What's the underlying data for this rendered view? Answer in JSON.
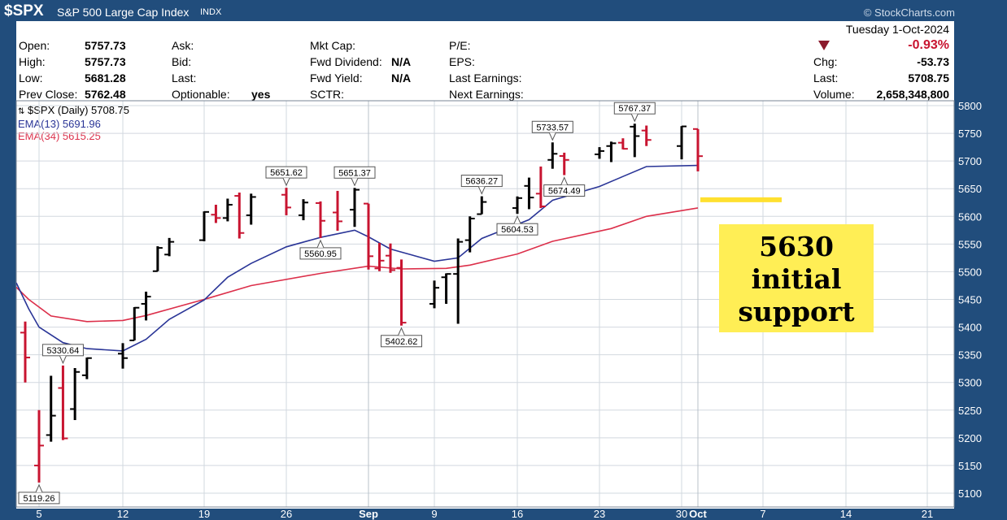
{
  "header": {
    "ticker": "$SPX",
    "name": "S&P 500 Large Cap Index",
    "exchange": "INDX",
    "brand": "© StockCharts.com"
  },
  "info": {
    "col1": [
      {
        "label": "Open:",
        "value": "5757.73"
      },
      {
        "label": "High:",
        "value": "5757.73"
      },
      {
        "label": "Low:",
        "value": "5681.28"
      },
      {
        "label": "Prev Close:",
        "value": "5762.48"
      }
    ],
    "col2": [
      {
        "label": "Ask:",
        "value": ""
      },
      {
        "label": "Bid:",
        "value": ""
      },
      {
        "label": "Last:",
        "value": ""
      },
      {
        "label": "Optionable:",
        "value": "yes"
      }
    ],
    "col3": [
      {
        "label": "Mkt Cap:",
        "value": ""
      },
      {
        "label": "Fwd Dividend:",
        "value": "N/A"
      },
      {
        "label": "Fwd Yield:",
        "value": "N/A"
      },
      {
        "label": "SCTR:",
        "value": ""
      }
    ],
    "col4": [
      {
        "label": "P/E:",
        "value": ""
      },
      {
        "label": "EPS:",
        "value": ""
      },
      {
        "label": "Last Earnings:",
        "value": ""
      },
      {
        "label": "Next Earnings:",
        "value": ""
      }
    ],
    "date": "Tuesday   1-Oct-2024",
    "change_pct": "-0.93%",
    "stats": [
      {
        "label": "Chg:",
        "value": "-53.73"
      },
      {
        "label": "Last:",
        "value": "5708.75"
      },
      {
        "label": "Volume:",
        "value": "2,658,348,800"
      }
    ],
    "colors": {
      "down": "#c81430",
      "up": "#000000",
      "ema13": "#2a3597",
      "ema34": "#dc2f4a",
      "annotation": "#ffee55",
      "support_line": "#ffe030"
    }
  },
  "legend": {
    "main": "$SPX (Daily) 5708.75",
    "ema13": "EMA(13) 5691.96",
    "ema34": "EMA(34) 5615.25"
  },
  "annotation": {
    "line1": "5630",
    "line2": "initial",
    "line3": "support"
  },
  "chart_data": {
    "type": "ohlc",
    "ylim": [
      5090,
      5810
    ],
    "yticks": [
      5100,
      5150,
      5200,
      5250,
      5300,
      5350,
      5400,
      5450,
      5500,
      5550,
      5600,
      5650,
      5700,
      5750,
      5800
    ],
    "xticks": [
      {
        "label": "5",
        "date": "2024-08-05"
      },
      {
        "label": "12",
        "date": "2024-08-12"
      },
      {
        "label": "19",
        "date": "2024-08-19"
      },
      {
        "label": "26",
        "date": "2024-08-26"
      },
      {
        "label": "Sep",
        "date": "2024-09-03"
      },
      {
        "label": "9",
        "date": "2024-09-09"
      },
      {
        "label": "16",
        "date": "2024-09-16"
      },
      {
        "label": "23",
        "date": "2024-09-23"
      },
      {
        "label": "30",
        "date": "2024-09-30"
      },
      {
        "label": "Oct",
        "date": "2024-10-01"
      },
      {
        "label": "7",
        "date": "2024-10-07"
      },
      {
        "label": "14",
        "date": "2024-10-14"
      },
      {
        "label": "21",
        "date": "2024-10-21"
      }
    ],
    "bars": [
      {
        "date": "2024-08-01",
        "o": 5390,
        "h": 5410,
        "l": 5300,
        "c": 5345,
        "down": true
      },
      {
        "date": "2024-08-05",
        "o": 5150,
        "h": 5250,
        "l": 5119.26,
        "c": 5186,
        "down": true
      },
      {
        "date": "2024-08-06",
        "o": 5205,
        "h": 5312,
        "l": 5193,
        "c": 5240,
        "down": false
      },
      {
        "date": "2024-08-07",
        "o": 5290,
        "h": 5330.64,
        "l": 5196,
        "c": 5199,
        "down": true
      },
      {
        "date": "2024-08-08",
        "o": 5252,
        "h": 5326,
        "l": 5232,
        "c": 5319,
        "down": false
      },
      {
        "date": "2024-08-09",
        "o": 5313,
        "h": 5345,
        "l": 5306,
        "c": 5344,
        "down": false
      },
      {
        "date": "2024-08-12",
        "o": 5352,
        "h": 5371,
        "l": 5325,
        "c": 5344,
        "down": false
      },
      {
        "date": "2024-08-13",
        "o": 5376,
        "h": 5436,
        "l": 5376,
        "c": 5435,
        "down": false
      },
      {
        "date": "2024-08-14",
        "o": 5442,
        "h": 5464,
        "l": 5412,
        "c": 5455,
        "down": false
      },
      {
        "date": "2024-08-15",
        "o": 5501,
        "h": 5546,
        "l": 5501,
        "c": 5543,
        "down": false
      },
      {
        "date": "2024-08-16",
        "o": 5531,
        "h": 5561,
        "l": 5528,
        "c": 5554,
        "down": false
      },
      {
        "date": "2024-08-19",
        "o": 5557,
        "h": 5609,
        "l": 5555,
        "c": 5608,
        "down": false
      },
      {
        "date": "2024-08-20",
        "o": 5603,
        "h": 5621,
        "l": 5588,
        "c": 5597,
        "down": true
      },
      {
        "date": "2024-08-21",
        "o": 5597,
        "h": 5632,
        "l": 5591,
        "c": 5621,
        "down": false
      },
      {
        "date": "2024-08-22",
        "o": 5637,
        "h": 5643,
        "l": 5560,
        "c": 5570,
        "down": true
      },
      {
        "date": "2024-08-23",
        "o": 5602,
        "h": 5641,
        "l": 5585,
        "c": 5635,
        "down": false
      },
      {
        "date": "2024-08-26",
        "o": 5639,
        "h": 5651.62,
        "l": 5602,
        "c": 5616,
        "down": true
      },
      {
        "date": "2024-08-27",
        "o": 5602,
        "h": 5631,
        "l": 5593,
        "c": 5625,
        "down": false
      },
      {
        "date": "2024-08-28",
        "o": 5624,
        "h": 5627,
        "l": 5560.95,
        "c": 5592,
        "down": true
      },
      {
        "date": "2024-08-29",
        "o": 5607,
        "h": 5646,
        "l": 5574,
        "c": 5591,
        "down": true
      },
      {
        "date": "2024-08-30",
        "o": 5612,
        "h": 5651.37,
        "l": 5581,
        "c": 5648,
        "down": false
      },
      {
        "date": "2024-09-03",
        "o": 5623,
        "h": 5623,
        "l": 5504,
        "c": 5528,
        "down": true
      },
      {
        "date": "2024-09-04",
        "o": 5506,
        "h": 5552,
        "l": 5501,
        "c": 5520,
        "down": true
      },
      {
        "date": "2024-09-05",
        "o": 5529,
        "h": 5551,
        "l": 5498,
        "c": 5503,
        "down": true
      },
      {
        "date": "2024-09-06",
        "o": 5507,
        "h": 5522,
        "l": 5402.62,
        "c": 5408,
        "down": true
      },
      {
        "date": "2024-09-09",
        "o": 5442,
        "h": 5484,
        "l": 5434,
        "c": 5471,
        "down": false
      },
      {
        "date": "2024-09-10",
        "o": 5490,
        "h": 5497,
        "l": 5442,
        "c": 5496,
        "down": false
      },
      {
        "date": "2024-09-11",
        "o": 5496,
        "h": 5560,
        "l": 5406,
        "c": 5554,
        "down": false
      },
      {
        "date": "2024-09-12",
        "o": 5557,
        "h": 5600,
        "l": 5535,
        "c": 5596,
        "down": false
      },
      {
        "date": "2024-09-13",
        "o": 5604,
        "h": 5636.27,
        "l": 5604,
        "c": 5626,
        "down": false
      },
      {
        "date": "2024-09-16",
        "o": 5615,
        "h": 5636,
        "l": 5604.53,
        "c": 5633,
        "down": false
      },
      {
        "date": "2024-09-17",
        "o": 5655,
        "h": 5670,
        "l": 5613,
        "c": 5634,
        "down": false
      },
      {
        "date": "2024-09-18",
        "o": 5641,
        "h": 5690,
        "l": 5615,
        "c": 5618,
        "down": true
      },
      {
        "date": "2024-09-19",
        "o": 5702,
        "h": 5733.57,
        "l": 5686,
        "c": 5713,
        "down": false
      },
      {
        "date": "2024-09-20",
        "o": 5709,
        "h": 5715,
        "l": 5674.49,
        "c": 5702,
        "down": true
      },
      {
        "date": "2024-09-23",
        "o": 5712,
        "h": 5725,
        "l": 5704,
        "c": 5718,
        "down": false
      },
      {
        "date": "2024-09-24",
        "o": 5727,
        "h": 5735,
        "l": 5698,
        "c": 5732,
        "down": false
      },
      {
        "date": "2024-09-25",
        "o": 5733,
        "h": 5741,
        "l": 5721,
        "c": 5722,
        "down": true
      },
      {
        "date": "2024-09-26",
        "o": 5762,
        "h": 5767.37,
        "l": 5707,
        "c": 5745,
        "down": false
      },
      {
        "date": "2024-09-27",
        "o": 5755,
        "h": 5764,
        "l": 5727,
        "c": 5738,
        "down": true
      },
      {
        "date": "2024-09-30",
        "o": 5727,
        "h": 5763,
        "l": 5703,
        "c": 5762.48,
        "down": false
      },
      {
        "date": "2024-10-01",
        "o": 5757.73,
        "h": 5757.73,
        "l": 5681.28,
        "c": 5708.75,
        "down": true
      }
    ],
    "callouts": [
      {
        "date": "2024-08-05",
        "value": 5119.26,
        "text": "5119.26",
        "pos": "below"
      },
      {
        "date": "2024-08-07",
        "value": 5330.64,
        "text": "5330.64",
        "pos": "above"
      },
      {
        "date": "2024-08-26",
        "value": 5651.62,
        "text": "5651.62",
        "pos": "above"
      },
      {
        "date": "2024-08-28",
        "value": 5560.95,
        "text": "5560.95",
        "pos": "below"
      },
      {
        "date": "2024-08-30",
        "value": 5651.37,
        "text": "5651.37",
        "pos": "above"
      },
      {
        "date": "2024-09-06",
        "value": 5402.62,
        "text": "5402.62",
        "pos": "below"
      },
      {
        "date": "2024-09-13",
        "value": 5636.27,
        "text": "5636.27",
        "pos": "above"
      },
      {
        "date": "2024-09-16",
        "value": 5604.53,
        "text": "5604.53",
        "pos": "below"
      },
      {
        "date": "2024-09-19",
        "value": 5733.57,
        "text": "5733.57",
        "pos": "above"
      },
      {
        "date": "2024-09-20",
        "value": 5674.49,
        "text": "5674.49",
        "pos": "below"
      },
      {
        "date": "2024-09-26",
        "value": 5767.37,
        "text": "5767.37",
        "pos": "above"
      }
    ],
    "ema13": [
      [
        "2024-07-31",
        5480
      ],
      [
        "2024-08-02",
        5433
      ],
      [
        "2024-08-05",
        5400
      ],
      [
        "2024-08-07",
        5372
      ],
      [
        "2024-08-09",
        5361
      ],
      [
        "2024-08-12",
        5357
      ],
      [
        "2024-08-14",
        5378
      ],
      [
        "2024-08-16",
        5414
      ],
      [
        "2024-08-19",
        5449
      ],
      [
        "2024-08-21",
        5490
      ],
      [
        "2024-08-23",
        5515
      ],
      [
        "2024-08-26",
        5545
      ],
      [
        "2024-08-28",
        5562
      ],
      [
        "2024-08-30",
        5575
      ],
      [
        "2024-09-03",
        5563
      ],
      [
        "2024-09-05",
        5541
      ],
      [
        "2024-09-09",
        5519
      ],
      [
        "2024-09-11",
        5525
      ],
      [
        "2024-09-13",
        5560
      ],
      [
        "2024-09-17",
        5594
      ],
      [
        "2024-09-19",
        5629
      ],
      [
        "2024-09-23",
        5654
      ],
      [
        "2024-09-25",
        5672
      ],
      [
        "2024-09-27",
        5690
      ],
      [
        "2024-10-01",
        5691.96
      ]
    ],
    "ema34": [
      [
        "2024-07-31",
        5472
      ],
      [
        "2024-08-02",
        5450
      ],
      [
        "2024-08-06",
        5420
      ],
      [
        "2024-08-09",
        5410
      ],
      [
        "2024-08-12",
        5412
      ],
      [
        "2024-08-14",
        5421
      ],
      [
        "2024-08-19",
        5450
      ],
      [
        "2024-08-23",
        5475
      ],
      [
        "2024-08-28",
        5497
      ],
      [
        "2024-09-03",
        5510
      ],
      [
        "2024-09-06",
        5505
      ],
      [
        "2024-09-10",
        5506
      ],
      [
        "2024-09-12",
        5512
      ],
      [
        "2024-09-16",
        5532
      ],
      [
        "2024-09-19",
        5555
      ],
      [
        "2024-09-24",
        5578
      ],
      [
        "2024-09-27",
        5600
      ],
      [
        "2024-10-01",
        5615.25
      ]
    ],
    "support_level": 5630
  }
}
